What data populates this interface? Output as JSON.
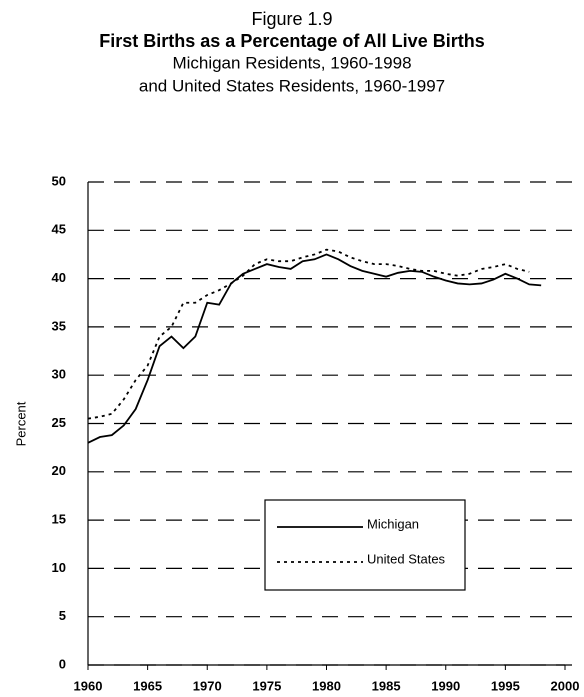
{
  "chart_data": {
    "type": "line",
    "figure_label": "Figure 1.9",
    "title": "First Births as a Percentage of All Live Births",
    "subtitle": [
      "Michigan Residents, 1960-1998",
      "and United States Residents, 1960-1997"
    ],
    "y_label": "Percent",
    "xlim": [
      1960,
      2000
    ],
    "xticks": [
      1960,
      1965,
      1970,
      1975,
      1980,
      1985,
      1990,
      1995,
      2000
    ],
    "ylim": [
      0,
      50
    ],
    "yticks": [
      0,
      5,
      10,
      15,
      20,
      25,
      30,
      35,
      40,
      45,
      50
    ],
    "grid": true,
    "legend_position": "center",
    "series": [
      {
        "name": "Michigan",
        "color": "#000000",
        "dash": "solid",
        "x": [
          1960,
          1961,
          1962,
          1963,
          1964,
          1965,
          1966,
          1967,
          1968,
          1969,
          1970,
          1971,
          1972,
          1973,
          1974,
          1975,
          1976,
          1977,
          1978,
          1979,
          1980,
          1981,
          1982,
          1983,
          1984,
          1985,
          1986,
          1987,
          1988,
          1989,
          1990,
          1991,
          1992,
          1993,
          1994,
          1995,
          1996,
          1997,
          1998
        ],
        "values": [
          23.0,
          23.6,
          23.8,
          24.8,
          26.5,
          29.5,
          33.0,
          34.0,
          32.8,
          34.0,
          37.5,
          37.3,
          39.5,
          40.5,
          41.0,
          41.5,
          41.2,
          41.0,
          41.8,
          42.0,
          42.5,
          42.0,
          41.3,
          40.8,
          40.5,
          40.2,
          40.6,
          40.8,
          40.7,
          40.2,
          39.8,
          39.5,
          39.4,
          39.5,
          39.9,
          40.5,
          40.0,
          39.4,
          39.3
        ]
      },
      {
        "name": "United States",
        "color": "#000000",
        "dash": "dotted",
        "x": [
          1960,
          1961,
          1962,
          1963,
          1964,
          1965,
          1966,
          1967,
          1968,
          1969,
          1970,
          1971,
          1972,
          1973,
          1974,
          1975,
          1976,
          1977,
          1978,
          1979,
          1980,
          1981,
          1982,
          1983,
          1984,
          1985,
          1986,
          1987,
          1988,
          1989,
          1990,
          1991,
          1992,
          1993,
          1994,
          1995,
          1996,
          1997
        ],
        "values": [
          25.5,
          25.7,
          26.0,
          27.5,
          29.5,
          31.0,
          34.0,
          35.0,
          37.5,
          37.5,
          38.3,
          38.8,
          39.5,
          40.3,
          41.5,
          42.0,
          41.8,
          41.8,
          42.2,
          42.5,
          43.0,
          42.8,
          42.2,
          41.8,
          41.5,
          41.5,
          41.3,
          41.0,
          40.8,
          40.8,
          40.5,
          40.3,
          40.5,
          41.0,
          41.2,
          41.5,
          41.0,
          40.7
        ]
      }
    ]
  }
}
